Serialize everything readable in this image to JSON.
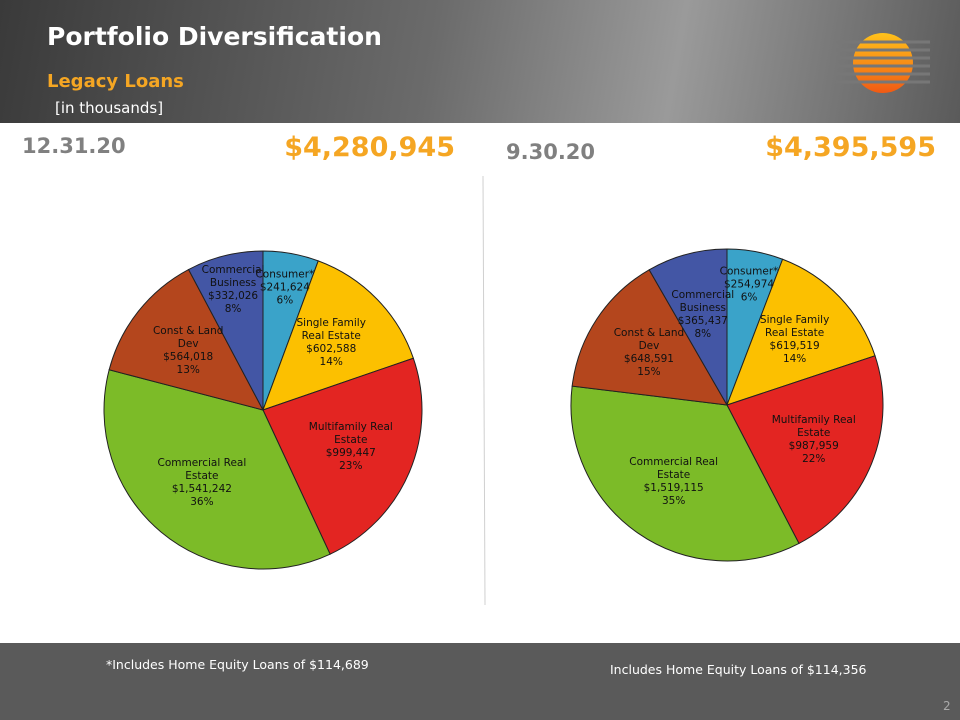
{
  "header": {
    "title": "Portfolio Diversification",
    "subtitle": "Legacy Loans",
    "units_note": "[in thousands]"
  },
  "chart_data": [
    {
      "type": "pie",
      "date": "12.31.20",
      "total_label": "$4,280,945",
      "categories": [
        "Consumer*",
        "Single Family Real Estate",
        "Multifamily Real Estate",
        "Commercial Real Estate",
        "Const & Land Dev",
        "Commercial Business"
      ],
      "values": [
        241624,
        602588,
        999447,
        1541242,
        564018,
        332026
      ],
      "value_labels": [
        "$241,624",
        "$602,588",
        "$999,447",
        "$1,541,242",
        "$564,018",
        "$332,026"
      ],
      "percent_labels": [
        "6%",
        "14%",
        "23%",
        "36%",
        "13%",
        "8%"
      ],
      "colors": [
        "#3aa3c9",
        "#fcc000",
        "#e32522",
        "#7cbb28",
        "#b4461d",
        "#4356a5"
      ]
    },
    {
      "type": "pie",
      "date": "9.30.20",
      "total_label": "$4,395,595",
      "categories": [
        "Consumer*",
        "Single Family Real Estate",
        "Multifamily Real Estate",
        "Commercial Real Estate",
        "Const & Land Dev",
        "Commercial Business"
      ],
      "values": [
        254974,
        619519,
        987959,
        1519115,
        648591,
        365437
      ],
      "value_labels": [
        "$254,974",
        "$619,519",
        "$987,959",
        "$1,519,115",
        "$648,591",
        "$365,437"
      ],
      "percent_labels": [
        "6%",
        "14%",
        "22%",
        "35%",
        "15%",
        "8%"
      ],
      "colors": [
        "#3aa3c9",
        "#fcc000",
        "#e32522",
        "#7cbb28",
        "#b4461d",
        "#4356a5"
      ]
    }
  ],
  "footer": {
    "note_left": "*Includes Home Equity Loans of $114,689",
    "note_right": "Includes Home Equity Loans of $114,356",
    "page": "2"
  }
}
